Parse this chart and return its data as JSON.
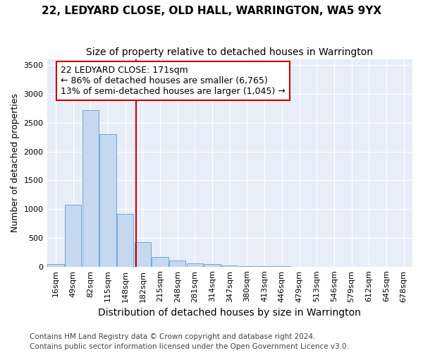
{
  "title1": "22, LEDYARD CLOSE, OLD HALL, WARRINGTON, WA5 9YX",
  "title2": "Size of property relative to detached houses in Warrington",
  "xlabel": "Distribution of detached houses by size in Warrington",
  "ylabel": "Number of detached properties",
  "footnote1": "Contains HM Land Registry data © Crown copyright and database right 2024.",
  "footnote2": "Contains public sector information licensed under the Open Government Licence v3.0.",
  "bar_labels": [
    "16sqm",
    "49sqm",
    "82sqm",
    "115sqm",
    "148sqm",
    "182sqm",
    "215sqm",
    "248sqm",
    "281sqm",
    "314sqm",
    "347sqm",
    "380sqm",
    "413sqm",
    "446sqm",
    "479sqm",
    "513sqm",
    "546sqm",
    "579sqm",
    "612sqm",
    "645sqm",
    "678sqm"
  ],
  "bar_values": [
    50,
    1080,
    2720,
    2300,
    920,
    420,
    165,
    110,
    60,
    45,
    20,
    10,
    5,
    3,
    2,
    1,
    1,
    0,
    0,
    0,
    0
  ],
  "bar_color": "#c5d8f0",
  "bar_edge_color": "#6fa8d8",
  "vline_x": 4.62,
  "annotation_text": "22 LEDYARD CLOSE: 171sqm\n← 86% of detached houses are smaller (6,765)\n13% of semi-detached houses are larger (1,045) →",
  "annotation_box_color": "#ffffff",
  "annotation_box_edge_color": "#cc0000",
  "vline_color": "#cc0000",
  "ylim": [
    0,
    3600
  ],
  "yticks": [
    0,
    500,
    1000,
    1500,
    2000,
    2500,
    3000,
    3500
  ],
  "axes_bg_color": "#e8eef7",
  "grid_color": "#ffffff",
  "figure_bg_color": "#ffffff",
  "title_fontsize": 11,
  "subtitle_fontsize": 10,
  "ylabel_fontsize": 9,
  "xlabel_fontsize": 10,
  "tick_fontsize": 8,
  "annotation_fontsize": 9,
  "footnote_fontsize": 7.5
}
